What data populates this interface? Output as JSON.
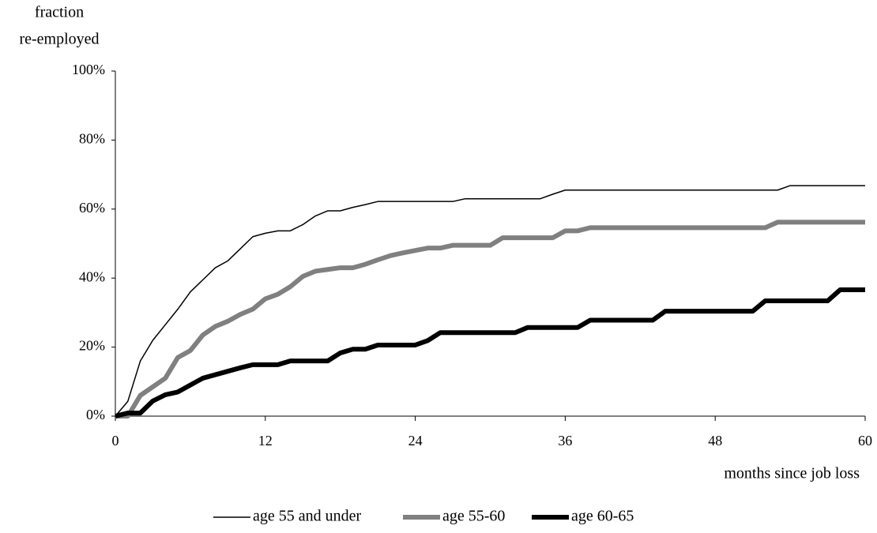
{
  "chart_data": {
    "type": "line",
    "ylabel": [
      "fraction",
      "re-employed"
    ],
    "xlabel": "months since job loss",
    "x": [
      0,
      1,
      2,
      3,
      4,
      5,
      6,
      7,
      8,
      9,
      10,
      11,
      12,
      13,
      14,
      15,
      16,
      17,
      18,
      19,
      20,
      21,
      22,
      23,
      24,
      25,
      26,
      27,
      28,
      29,
      30,
      31,
      32,
      33,
      34,
      35,
      36,
      37,
      38,
      39,
      40,
      41,
      42,
      43,
      44,
      45,
      46,
      47,
      48,
      49,
      50,
      51,
      52,
      53,
      54,
      55,
      56,
      57,
      58,
      59,
      60
    ],
    "xlim": [
      0,
      60
    ],
    "xticks": [
      0,
      12,
      24,
      36,
      48,
      60
    ],
    "ylim": [
      0,
      100
    ],
    "yticks": [
      {
        "value": 0,
        "label": "0%"
      },
      {
        "value": 20,
        "label": "20%"
      },
      {
        "value": 40,
        "label": "40%"
      },
      {
        "value": 60,
        "label": "60%"
      },
      {
        "value": 80,
        "label": "80%"
      },
      {
        "value": 100,
        "label": "100%"
      }
    ],
    "series": [
      {
        "name": "age 55 and under",
        "color": "#000000",
        "width": 1.5,
        "values": [
          0,
          4.3,
          16,
          22,
          26.5,
          31,
          36,
          39.5,
          43,
          45,
          48.5,
          52,
          53,
          53.7,
          53.7,
          55.5,
          58,
          59.5,
          59.5,
          60.5,
          61.3,
          62.2,
          62.2,
          62.2,
          62.2,
          62.2,
          62.2,
          62.2,
          63,
          63,
          63,
          63,
          63,
          63,
          63,
          64.3,
          65.5,
          65.5,
          65.5,
          65.5,
          65.5,
          65.5,
          65.5,
          65.5,
          65.5,
          65.5,
          65.5,
          65.5,
          65.5,
          65.5,
          65.5,
          65.5,
          65.5,
          65.5,
          66.8,
          66.8,
          66.8,
          66.8,
          66.8,
          66.8,
          66.8
        ]
      },
      {
        "name": "age 55-60",
        "color": "#808080",
        "width": 6,
        "values": [
          0,
          0,
          6,
          8.5,
          11,
          17,
          19,
          23.5,
          26,
          27.5,
          29.5,
          31,
          34,
          35.3,
          37.5,
          40.5,
          42,
          42.5,
          43,
          43,
          44,
          45.3,
          46.5,
          47.3,
          48,
          48.7,
          48.7,
          49.5,
          49.5,
          49.5,
          49.5,
          51.7,
          51.7,
          51.7,
          51.7,
          51.7,
          53.7,
          53.7,
          54.6,
          54.6,
          54.6,
          54.6,
          54.6,
          54.6,
          54.6,
          54.6,
          54.6,
          54.6,
          54.6,
          54.6,
          54.6,
          54.6,
          54.6,
          56.2,
          56.2,
          56.2,
          56.2,
          56.2,
          56.2,
          56.2,
          56.2
        ]
      },
      {
        "name": "age 60-65",
        "color": "#000000",
        "width": 6,
        "values": [
          0,
          0.9,
          0.9,
          4.4,
          6.2,
          7,
          9,
          11,
          12,
          13,
          14,
          14.9,
          14.9,
          14.9,
          16,
          16,
          16,
          16,
          18.3,
          19.4,
          19.4,
          20.6,
          20.6,
          20.6,
          20.6,
          21.9,
          24.2,
          24.2,
          24.2,
          24.2,
          24.2,
          24.2,
          24.2,
          25.7,
          25.7,
          25.7,
          25.7,
          25.7,
          27.8,
          27.8,
          27.8,
          27.8,
          27.8,
          27.8,
          30.4,
          30.4,
          30.4,
          30.4,
          30.4,
          30.4,
          30.4,
          30.4,
          33.4,
          33.4,
          33.4,
          33.4,
          33.4,
          33.4,
          36.6,
          36.6,
          36.6
        ]
      }
    ]
  }
}
